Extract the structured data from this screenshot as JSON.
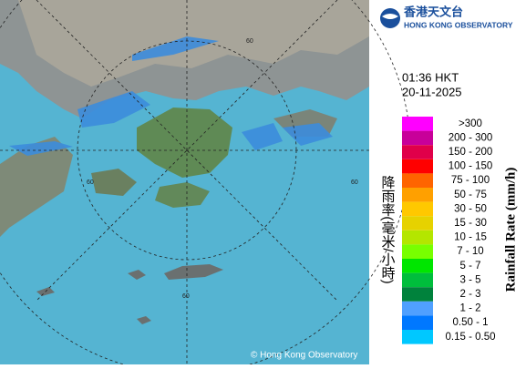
{
  "header": {
    "name_zh": "香港天文台",
    "name_en": "HONG KONG OBSERVATORY"
  },
  "time": "01:36 HKT",
  "date": "20-11-2025",
  "legend": {
    "title_zh": "降雨率(毫米/小時)",
    "title_en": "Rainfall Rate (mm/h)",
    "items": [
      {
        "label": ">300",
        "color": "#ff00ff"
      },
      {
        "label": "200 - 300",
        "color": "#c8009a"
      },
      {
        "label": "150 - 200",
        "color": "#e0004a"
      },
      {
        "label": "100 - 150",
        "color": "#ff0000"
      },
      {
        "label": "75 - 100",
        "color": "#ff6400"
      },
      {
        "label": "50 - 75",
        "color": "#ffa000"
      },
      {
        "label": "30 - 50",
        "color": "#ffc800"
      },
      {
        "label": "15 - 30",
        "color": "#e6d200"
      },
      {
        "label": "10 - 15",
        "color": "#b4e600"
      },
      {
        "label": "7 - 10",
        "color": "#78ff00"
      },
      {
        "label": "5 - 7",
        "color": "#00e600"
      },
      {
        "label": "3 - 5",
        "color": "#00be3c"
      },
      {
        "label": "2 - 3",
        "color": "#00823c"
      },
      {
        "label": "1 - 2",
        "color": "#50a0ff"
      },
      {
        "label": "0.50 - 1",
        "color": "#0078ff"
      },
      {
        "label": "0.15 - 0.50",
        "color": "#00c8ff"
      }
    ]
  },
  "map": {
    "ring_labels": [
      "60",
      "60",
      "60",
      "60"
    ],
    "copyright": "© Hong Kong Observatory"
  }
}
